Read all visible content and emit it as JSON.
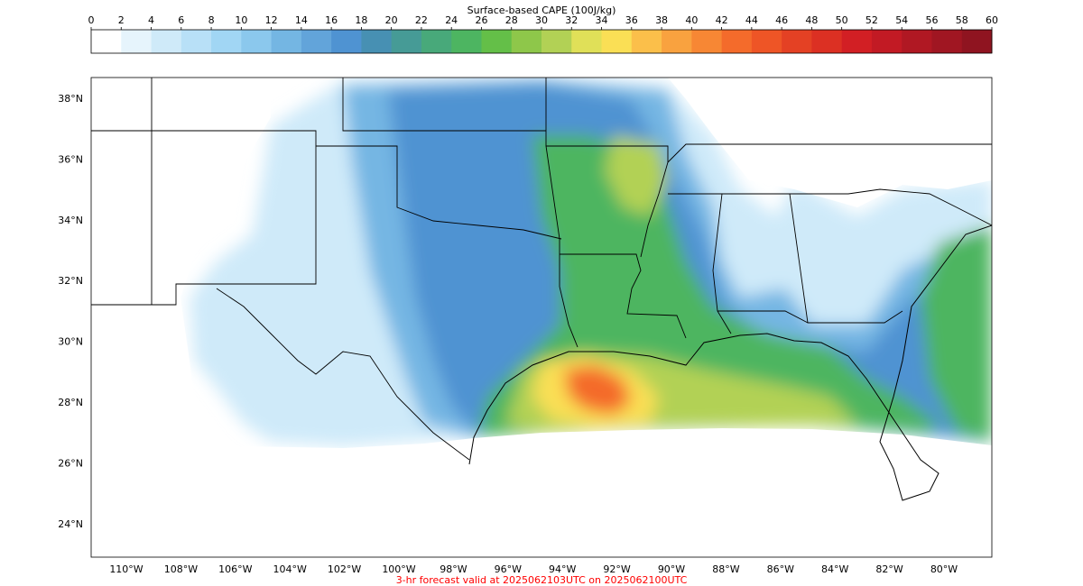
{
  "colorbar": {
    "title": "Surface-based CAPE (100J/kg)",
    "ticks": [
      "0",
      "2",
      "4",
      "6",
      "8",
      "10",
      "12",
      "14",
      "16",
      "18",
      "20",
      "22",
      "24",
      "26",
      "28",
      "30",
      "32",
      "34",
      "36",
      "38",
      "40",
      "42",
      "44",
      "46",
      "48",
      "50",
      "52",
      "54",
      "56",
      "58",
      "60"
    ],
    "colors": [
      "#ffffff",
      "#e6f4fc",
      "#cfeaf9",
      "#b8e0f7",
      "#a1d6f4",
      "#8bc8ed",
      "#74b6e3",
      "#62a4da",
      "#4f93d2",
      "#4790b3",
      "#469b96",
      "#48a97a",
      "#4db561",
      "#64bf48",
      "#8ec74a",
      "#b2d155",
      "#e0e058",
      "#fadf55",
      "#fbbf4a",
      "#f9a23f",
      "#f78734",
      "#f46b2b",
      "#ee5526",
      "#e44124",
      "#dc3023",
      "#d21f24",
      "#c21a24",
      "#b01823",
      "#a01622",
      "#8f1420"
    ]
  },
  "map": {
    "lat_labels": [
      "38°N",
      "36°N",
      "34°N",
      "32°N",
      "30°N",
      "28°N",
      "26°N",
      "24°N"
    ],
    "lon_labels": [
      "110°W",
      "108°W",
      "106°W",
      "104°W",
      "102°W",
      "100°W",
      "98°W",
      "96°W",
      "94°W",
      "92°W",
      "90°W",
      "88°W",
      "86°W",
      "84°W",
      "82°W",
      "80°W"
    ],
    "lat_values": [
      38,
      36,
      34,
      32,
      30,
      28,
      26,
      24
    ],
    "lon_values": [
      -110,
      -108,
      -106,
      -104,
      -102,
      -100,
      -98,
      -96,
      -94,
      -92,
      -90,
      -88,
      -86,
      -84,
      -82,
      -80
    ]
  },
  "footer": {
    "valid_text": "3-hr forecast valid at 2025062103UTC on 2025062100UTC",
    "valid_color": "#ff0000"
  }
}
